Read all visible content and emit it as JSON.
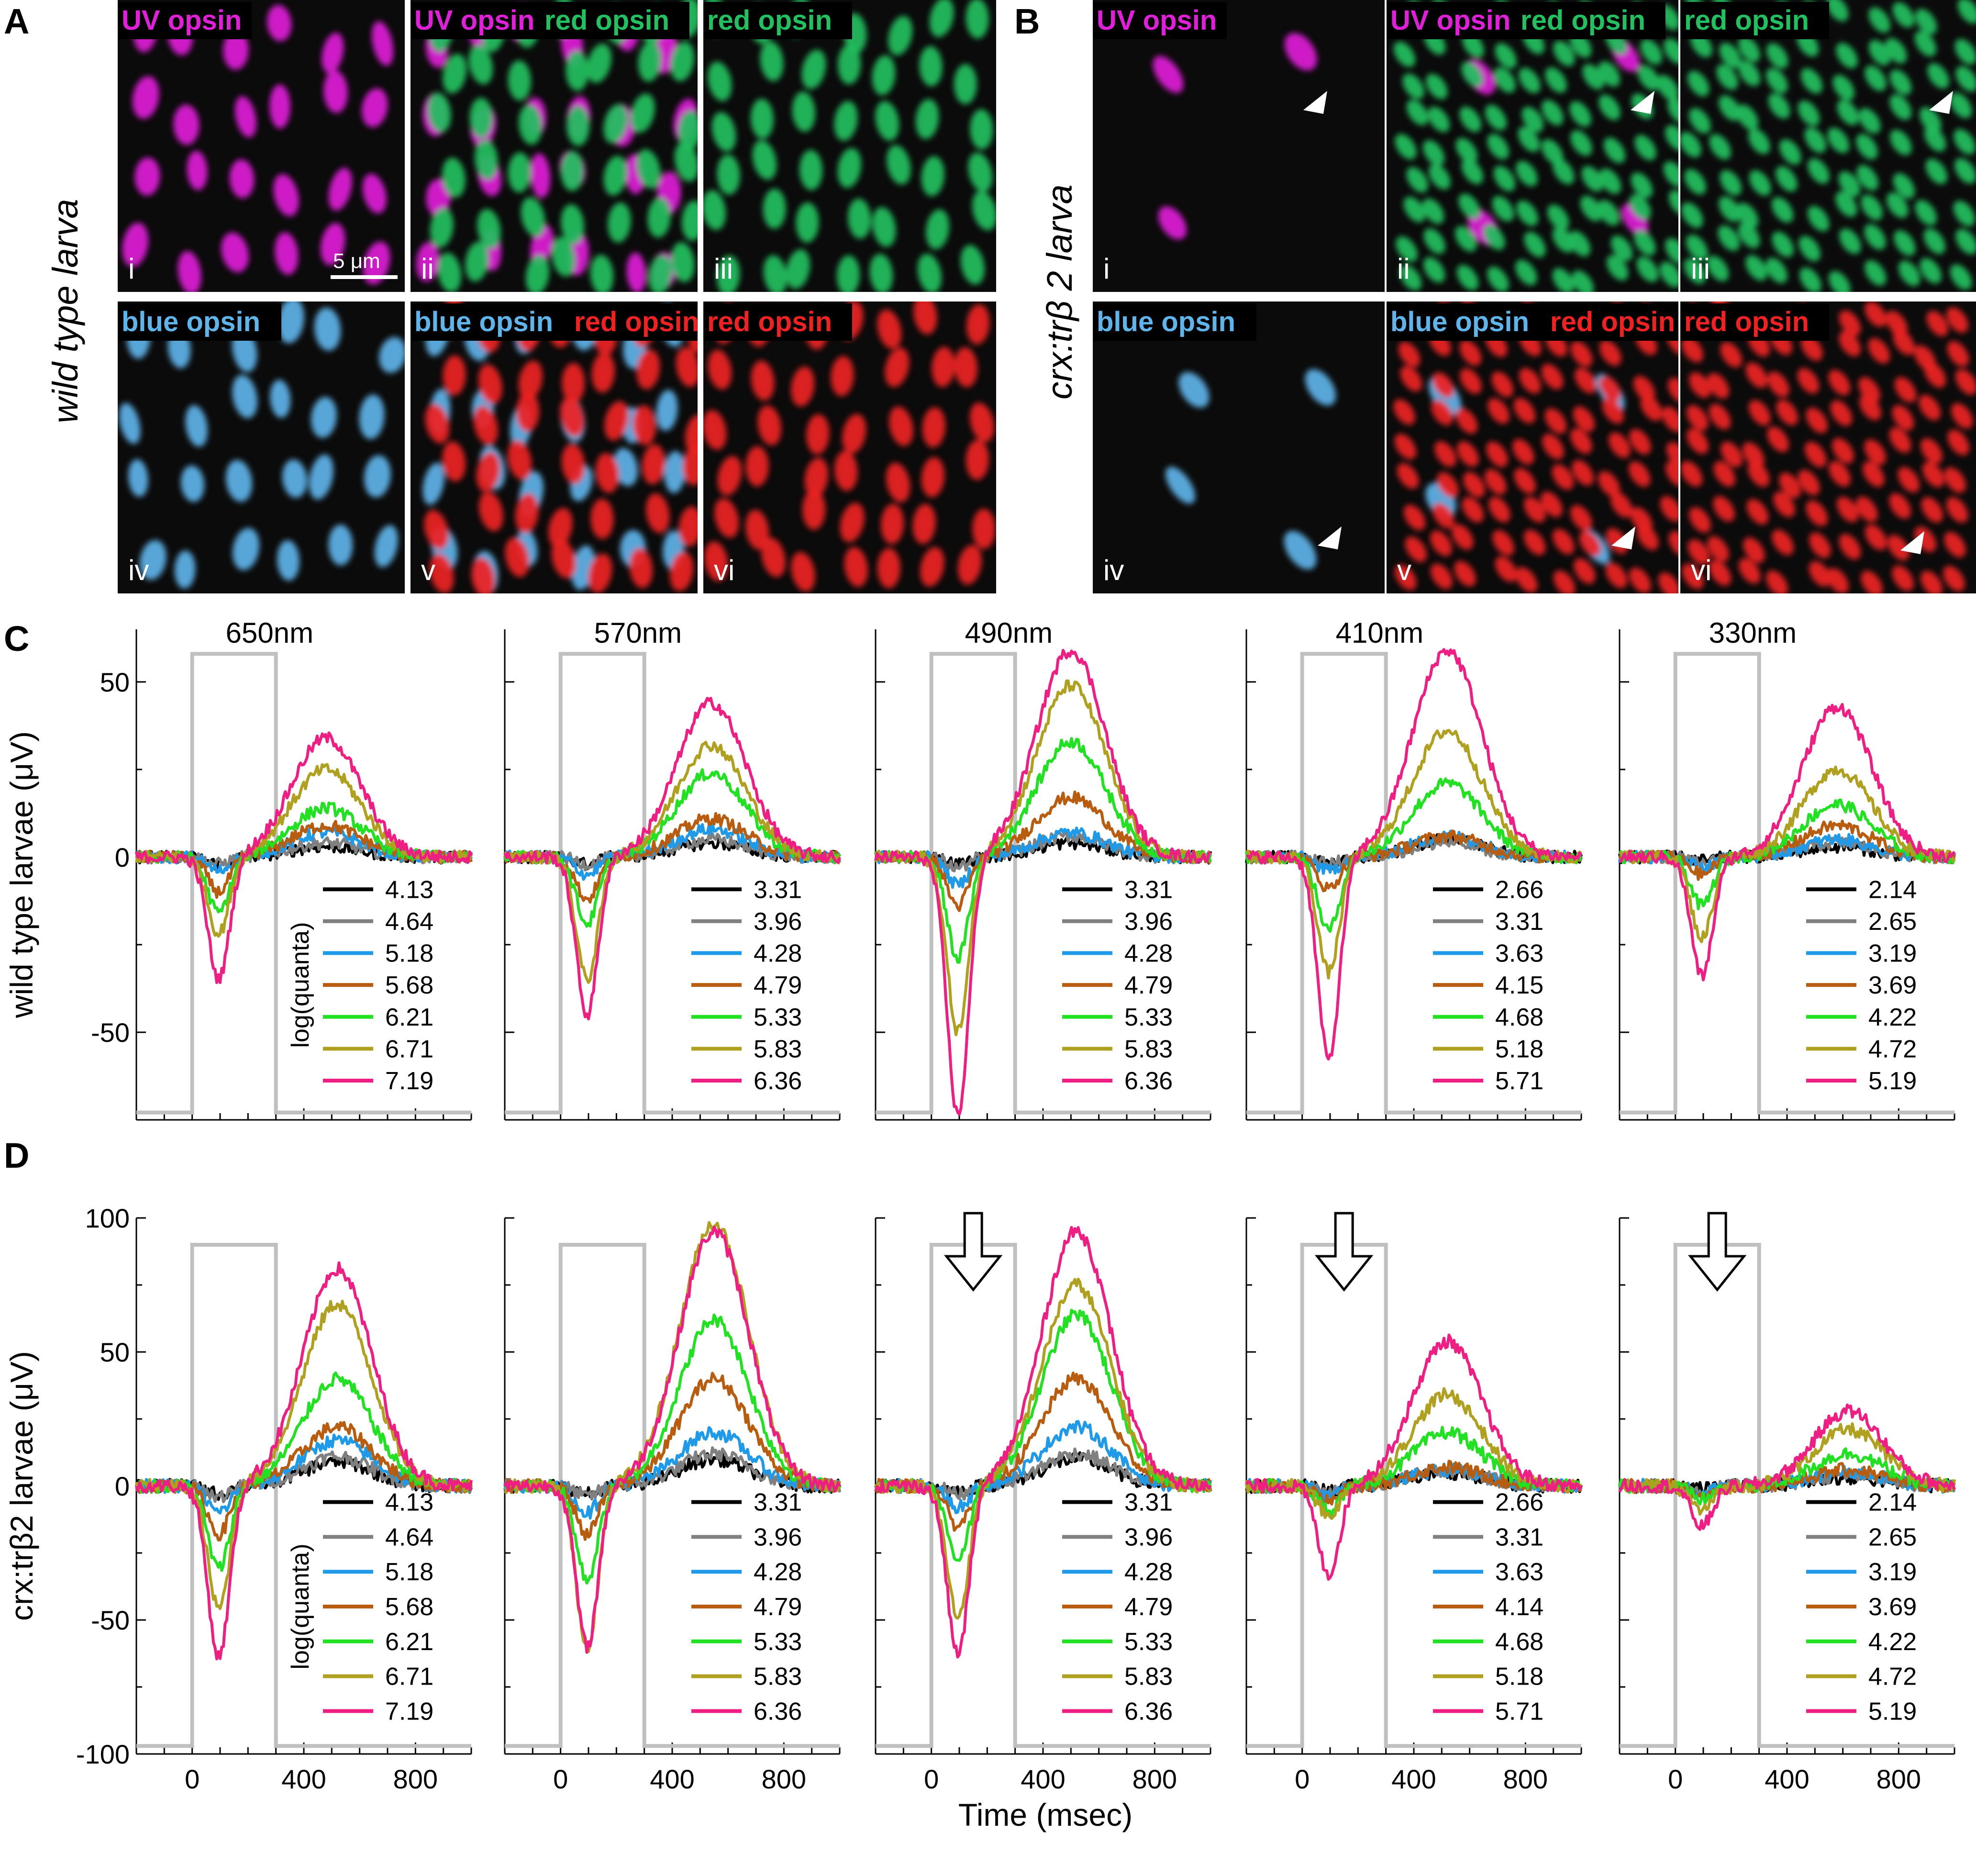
{
  "figure": {
    "panel_labels": [
      "A",
      "B",
      "C",
      "D"
    ],
    "genotype_labels": {
      "A": "wild type larva",
      "B": "crx:trβ 2 larva"
    },
    "scale_bar": "5 μm",
    "channel_colors": {
      "UV opsin": "#e020d8",
      "red opsin (green)": "#22c060",
      "blue opsin": "#5fb4ea",
      "red opsin (red)": "#ee2222"
    },
    "micrographs": [
      {
        "panel": "A",
        "roman": "i",
        "channels": [
          {
            "label": "UV opsin",
            "color": "#e020d8"
          }
        ]
      },
      {
        "panel": "A",
        "roman": "ii",
        "channels": [
          {
            "label": "UV opsin",
            "color": "#e020d8"
          },
          {
            "label": "red opsin",
            "color": "#22c060"
          }
        ]
      },
      {
        "panel": "A",
        "roman": "iii",
        "channels": [
          {
            "label": "red opsin",
            "color": "#22c060"
          }
        ]
      },
      {
        "panel": "A",
        "roman": "iv",
        "channels": [
          {
            "label": "blue opsin",
            "color": "#5fb4ea"
          }
        ]
      },
      {
        "panel": "A",
        "roman": "v",
        "channels": [
          {
            "label": "blue opsin",
            "color": "#5fb4ea"
          },
          {
            "label": "red opsin",
            "color": "#ee2222"
          }
        ]
      },
      {
        "panel": "A",
        "roman": "vi",
        "channels": [
          {
            "label": "red opsin",
            "color": "#ee2222"
          }
        ]
      },
      {
        "panel": "B",
        "roman": "i",
        "channels": [
          {
            "label": "UV opsin",
            "color": "#e020d8"
          }
        ]
      },
      {
        "panel": "B",
        "roman": "ii",
        "channels": [
          {
            "label": "UV opsin",
            "color": "#e020d8"
          },
          {
            "label": "red opsin",
            "color": "#22c060"
          }
        ]
      },
      {
        "panel": "B",
        "roman": "iii",
        "channels": [
          {
            "label": "red opsin",
            "color": "#22c060"
          }
        ]
      },
      {
        "panel": "B",
        "roman": "iv",
        "channels": [
          {
            "label": "blue opsin",
            "color": "#5fb4ea"
          }
        ]
      },
      {
        "panel": "B",
        "roman": "v",
        "channels": [
          {
            "label": "blue opsin",
            "color": "#5fb4ea"
          },
          {
            "label": "red opsin",
            "color": "#ee2222"
          }
        ]
      },
      {
        "panel": "B",
        "roman": "vi",
        "channels": [
          {
            "label": "red opsin",
            "color": "#ee2222"
          }
        ]
      }
    ]
  },
  "chart_data": [
    {
      "type": "line",
      "panel": "C",
      "ylabel": "wild type larvae (μV)",
      "xlabel": "",
      "ylim": [
        -75,
        65
      ],
      "xlim": [
        -200,
        1000
      ],
      "yticks": [
        -50,
        0,
        50
      ],
      "legend_title": "log(quanta)",
      "stimulus_window_ms": [
        0,
        300
      ],
      "series_colors": [
        "#000000",
        "#808080",
        "#1e9ae8",
        "#b85c10",
        "#22e022",
        "#b0a020",
        "#ee1e82"
      ],
      "columns": [
        {
          "wavelength": "650nm",
          "legend": [
            "4.13",
            "4.64",
            "5.18",
            "5.68",
            "6.21",
            "6.71",
            "7.19"
          ],
          "neg_peaks": [
            -2,
            -2,
            -4,
            -10,
            -16,
            -22,
            -35
          ],
          "pos_peaks": [
            3,
            4,
            7,
            9,
            14,
            25,
            34
          ],
          "pos_peak_time": 480
        },
        {
          "wavelength": "570nm",
          "legend": [
            "3.31",
            "3.96",
            "4.28",
            "4.79",
            "5.33",
            "5.83",
            "6.36"
          ],
          "neg_peaks": [
            -2,
            -2,
            -5,
            -12,
            -19,
            -35,
            -45
          ],
          "pos_peaks": [
            4,
            5,
            8,
            11,
            24,
            32,
            44
          ],
          "pos_peak_time": 540
        },
        {
          "wavelength": "490nm",
          "legend": [
            "3.31",
            "3.96",
            "4.28",
            "4.79",
            "5.33",
            "5.83",
            "6.36"
          ],
          "neg_peaks": [
            -2,
            -3,
            -8,
            -14,
            -29,
            -50,
            -74
          ],
          "pos_peaks": [
            4,
            6,
            7,
            17,
            33,
            49,
            59
          ],
          "pos_peak_time": 500
        },
        {
          "wavelength": "410nm",
          "legend": [
            "2.66",
            "3.31",
            "3.63",
            "4.15",
            "4.68",
            "5.18",
            "5.71"
          ],
          "neg_peaks": [
            -2,
            -2,
            -4,
            -9,
            -21,
            -33,
            -58
          ],
          "pos_peaks": [
            5,
            4,
            6,
            6,
            21,
            36,
            59
          ],
          "pos_peak_time": 520
        },
        {
          "wavelength": "330nm",
          "legend": [
            "2.14",
            "2.65",
            "3.19",
            "3.69",
            "4.22",
            "4.72",
            "5.19"
          ],
          "neg_peaks": [
            -1,
            -2,
            -3,
            -5,
            -14,
            -23,
            -34
          ],
          "pos_peaks": [
            3,
            4,
            5,
            9,
            15,
            25,
            43
          ],
          "pos_peak_time": 580
        }
      ]
    },
    {
      "type": "line",
      "panel": "D",
      "ylabel": "crx:trβ2 larvae (μV)",
      "xlabel": "Time (msec)",
      "ylim": [
        -100,
        100
      ],
      "xlim": [
        -200,
        1000
      ],
      "yticks": [
        -100,
        -50,
        0,
        50,
        100
      ],
      "xticks": [
        0,
        400,
        800
      ],
      "legend_title": "log(quanta)",
      "stimulus_window_ms": [
        0,
        300
      ],
      "series_colors": [
        "#000000",
        "#808080",
        "#1e9ae8",
        "#b85c10",
        "#22e022",
        "#b0a020",
        "#ee1e82"
      ],
      "columns": [
        {
          "wavelength": "650nm",
          "legend": [
            "4.13",
            "4.64",
            "5.18",
            "5.68",
            "6.21",
            "6.71",
            "7.19"
          ],
          "neg_peaks": [
            -3,
            -4,
            -10,
            -18,
            -31,
            -46,
            -64
          ],
          "pos_peaks": [
            9,
            11,
            17,
            22,
            40,
            68,
            81
          ],
          "pos_peak_time": 520
        },
        {
          "wavelength": "570nm",
          "legend": [
            "3.31",
            "3.96",
            "4.28",
            "4.79",
            "5.33",
            "5.83",
            "6.36"
          ],
          "neg_peaks": [
            -3,
            -4,
            -10,
            -18,
            -35,
            -60,
            -60
          ],
          "pos_peaks": [
            10,
            12,
            20,
            40,
            62,
            98,
            95
          ],
          "pos_peak_time": 550
        },
        {
          "wavelength": "490nm",
          "legend": [
            "3.31",
            "3.96",
            "4.28",
            "4.79",
            "5.33",
            "5.83",
            "6.36"
          ],
          "neg_peaks": [
            -2,
            -3,
            -8,
            -15,
            -27,
            -49,
            -63
          ],
          "pos_peaks": [
            10,
            12,
            22,
            40,
            64,
            75,
            95
          ],
          "pos_peak_time": 520
        },
        {
          "wavelength": "410nm",
          "legend": [
            "2.66",
            "3.31",
            "3.63",
            "4.14",
            "4.68",
            "5.18",
            "5.71"
          ],
          "neg_peaks": [
            -2,
            -3,
            -4,
            -6,
            -9,
            -11,
            -33
          ],
          "pos_peaks": [
            5,
            6,
            6,
            7,
            20,
            34,
            54
          ],
          "pos_peak_time": 520
        },
        {
          "wavelength": "330nm",
          "legend": [
            "2.14",
            "2.65",
            "3.19",
            "3.69",
            "4.22",
            "4.72",
            "5.19"
          ],
          "neg_peaks": [
            -1,
            -2,
            -3,
            -4,
            -5,
            -9,
            -15
          ],
          "pos_peaks": [
            3,
            4,
            5,
            6,
            12,
            21,
            28
          ],
          "pos_peak_time": 620
        }
      ]
    }
  ]
}
